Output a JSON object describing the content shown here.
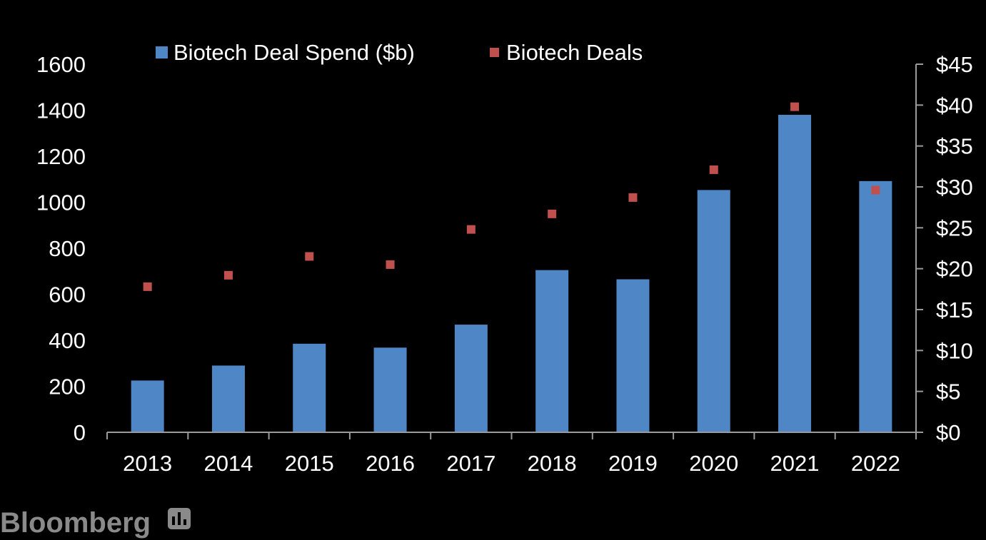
{
  "chart_data": {
    "type": "bar",
    "categories": [
      "2013",
      "2014",
      "2015",
      "2016",
      "2017",
      "2018",
      "2019",
      "2020",
      "2021",
      "2022"
    ],
    "series": [
      {
        "name": "Biotech Deal Spend ($b)",
        "type": "bar",
        "axis": "left",
        "color": "#4f86c6",
        "values": [
          225,
          290,
          385,
          368,
          468,
          705,
          665,
          1053,
          1380,
          1092
        ]
      },
      {
        "name": "Biotech Deals",
        "type": "scatter",
        "axis": "right",
        "color": "#c0504d",
        "values": [
          17.8,
          19.2,
          21.5,
          20.5,
          24.8,
          26.7,
          28.7,
          32.1,
          39.8,
          29.6
        ]
      }
    ],
    "left_axis": {
      "min": 0,
      "max": 1600,
      "ticks": [
        "0",
        "200",
        "400",
        "600",
        "800",
        "1000",
        "1200",
        "1400",
        "1600"
      ]
    },
    "right_axis": {
      "min": 0,
      "max": 45,
      "ticks": [
        "$0",
        "$5",
        "$10",
        "$15",
        "$20",
        "$25",
        "$30",
        "$35",
        "$40",
        "$45"
      ]
    },
    "legend_position": "top",
    "grid": false
  },
  "brand": {
    "name": "Bloomberg",
    "icon": "bloomberg-chart-icon"
  },
  "colors": {
    "background": "#000000",
    "axis": "#9a9a9a",
    "text": "#ffffff"
  }
}
